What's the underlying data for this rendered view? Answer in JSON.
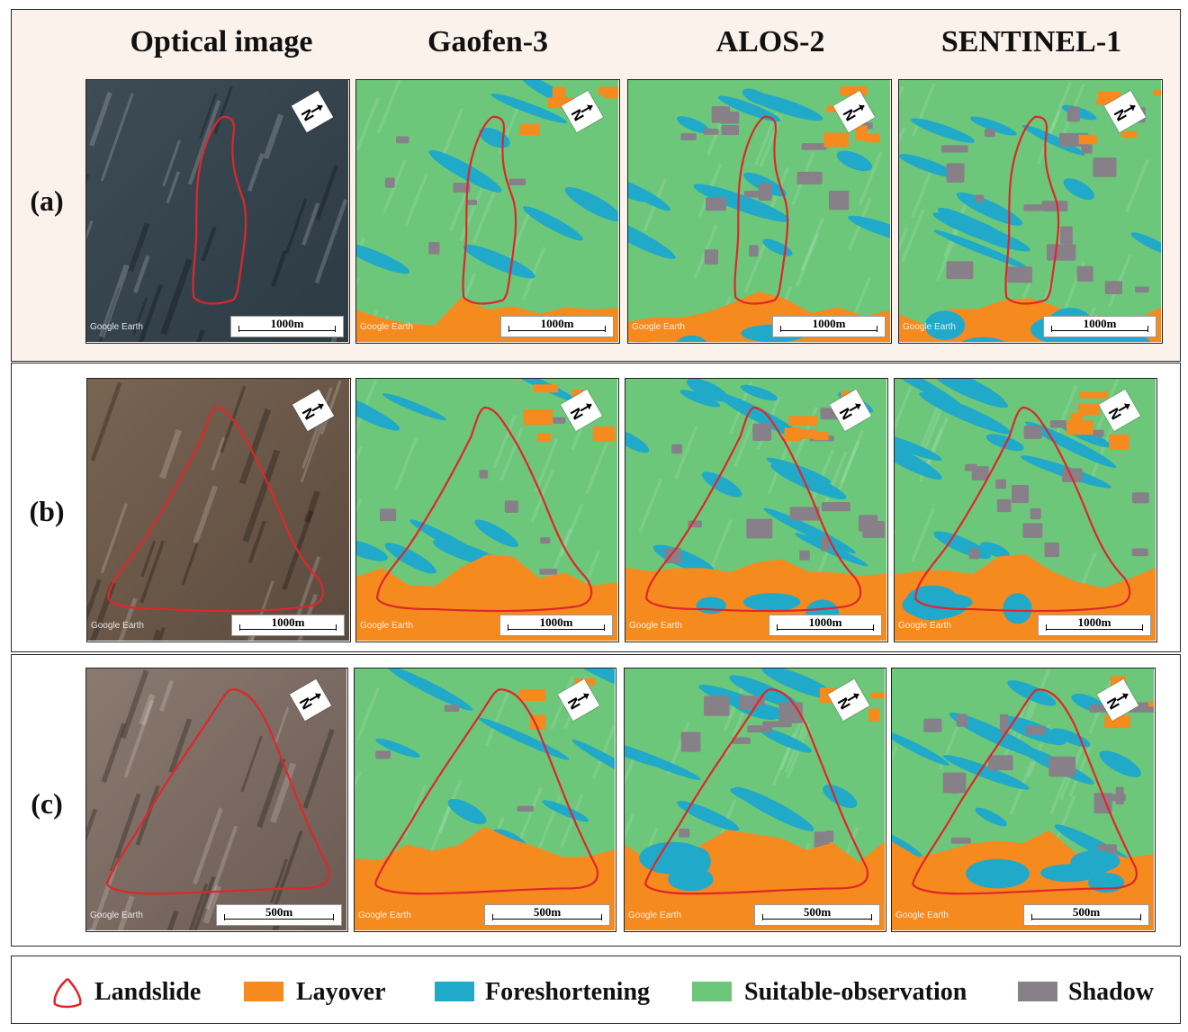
{
  "columns": [
    "Optical image",
    "Gaofen-3",
    "ALOS-2",
    "SENTINEL-1"
  ],
  "rows": [
    {
      "label": "(a)",
      "scale": "1000m"
    },
    {
      "label": "(b)",
      "scale": "1000m"
    },
    {
      "label": "(c)",
      "scale": "500m"
    }
  ],
  "watermark": "Google Earth",
  "north_label": "N",
  "legend": {
    "landslide": "Landslide",
    "layover": "Layover",
    "foreshortening": "Foreshortening",
    "suitable": "Suitable-observation",
    "shadow": "Shadow"
  },
  "colors": {
    "landslide": "#e0262a",
    "layover": "#f58a1f",
    "foreshortening": "#20a9c9",
    "suitable": "#6cc77a",
    "shadow": "#888088"
  }
}
